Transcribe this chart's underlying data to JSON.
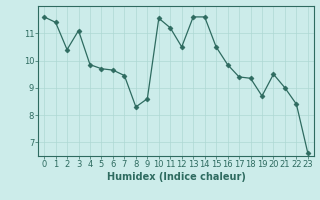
{
  "x": [
    0,
    1,
    2,
    3,
    4,
    5,
    6,
    7,
    8,
    9,
    10,
    11,
    12,
    13,
    14,
    15,
    16,
    17,
    18,
    19,
    20,
    21,
    22,
    23
  ],
  "y": [
    11.6,
    11.4,
    10.4,
    11.1,
    9.85,
    9.7,
    9.65,
    9.45,
    8.3,
    8.6,
    11.55,
    11.2,
    10.5,
    11.6,
    11.6,
    10.5,
    9.85,
    9.4,
    9.35,
    8.7,
    9.5,
    9.0,
    8.4,
    6.6
  ],
  "line_color": "#2e6b60",
  "marker": "D",
  "marker_size": 2.5,
  "bg_color": "#ccecea",
  "grid_color": "#aed8d4",
  "xlabel": "Humidex (Indice chaleur)",
  "ylim": [
    6.5,
    12.0
  ],
  "xlim": [
    -0.5,
    23.5
  ],
  "yticks": [
    7,
    8,
    9,
    10,
    11
  ],
  "xticks": [
    0,
    1,
    2,
    3,
    4,
    5,
    6,
    7,
    8,
    9,
    10,
    11,
    12,
    13,
    14,
    15,
    16,
    17,
    18,
    19,
    20,
    21,
    22,
    23
  ],
  "tick_fontsize": 6,
  "xlabel_fontsize": 7,
  "axis_color": "#2e6b60"
}
